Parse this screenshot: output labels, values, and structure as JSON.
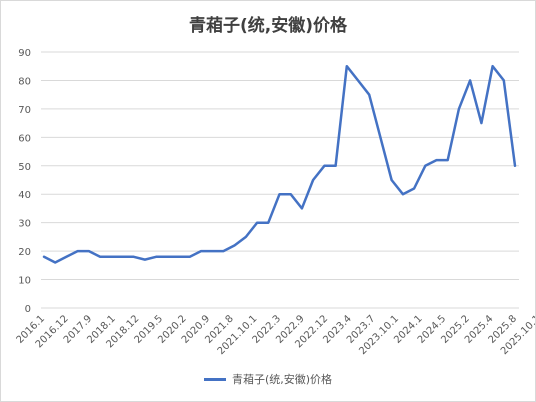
{
  "chart_data": {
    "type": "line",
    "title": "青葙子(统,安徽)价格",
    "xlabel": "",
    "ylabel": "",
    "ylim": [
      0,
      90
    ],
    "yticks": [
      0,
      10,
      20,
      30,
      40,
      50,
      60,
      70,
      80,
      90
    ],
    "grid": true,
    "legend_position": "bottom",
    "colors": {
      "series": "#4472c4",
      "grid": "#d9d9d9",
      "text": "#595959"
    },
    "x_tick_labels": [
      "2016.1",
      "2016.12",
      "2017.9",
      "2018.1",
      "2018.12",
      "2019.5",
      "2020.2",
      "2020.9",
      "2021.8",
      "2021.10.1",
      "2022.3",
      "2022.9",
      "2022.12",
      "2023.4",
      "2023.7",
      "2023.10.1",
      "2024.1",
      "2024.5",
      "2025.2",
      "2025.4",
      "2025.8",
      "2025.10.1"
    ],
    "series": [
      {
        "name": "青葙子(统,安徽)价格",
        "values": [
          18,
          16,
          18,
          20,
          20,
          18,
          18,
          18,
          18,
          17,
          18,
          18,
          18,
          18,
          20,
          20,
          20,
          22,
          25,
          30,
          30,
          40,
          40,
          35,
          45,
          50,
          50,
          85,
          80,
          75,
          60,
          45,
          40,
          42,
          50,
          52,
          52,
          70,
          80,
          65,
          85,
          80,
          50
        ]
      }
    ]
  }
}
